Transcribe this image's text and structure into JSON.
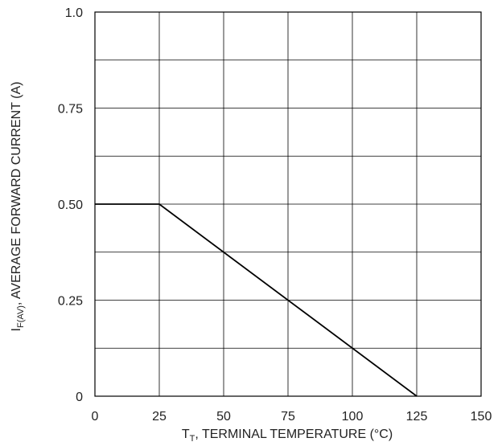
{
  "chart_data": {
    "type": "line",
    "xlabel": {
      "main": "T",
      "sub": "T",
      "rest": ", TERMINAL TEMPERATURE (°C)"
    },
    "ylabel": {
      "main": "I",
      "sub": "F(AV)",
      "rest": ", AVERAGE FORWARD CURRENT (A)"
    },
    "xlim": [
      0,
      150
    ],
    "ylim": [
      0,
      1.0
    ],
    "x_ticks": [
      0,
      25,
      50,
      75,
      100,
      125,
      150
    ],
    "x_tick_labels": [
      "0",
      "25",
      "50",
      "75",
      "100",
      "125",
      "150"
    ],
    "y_ticks": [
      0,
      0.25,
      0.5,
      0.75,
      1.0
    ],
    "y_tick_labels": [
      "0",
      "0.25",
      "0.50",
      "0.75",
      "1.0"
    ],
    "y_gridlines": [
      0.125,
      0.25,
      0.375,
      0.5,
      0.625,
      0.75,
      0.875
    ],
    "x_gridlines": [
      25,
      50,
      75,
      100,
      125
    ],
    "grid": true,
    "series": [
      {
        "x": [
          0,
          25,
          125
        ],
        "y": [
          0.5,
          0.5,
          0
        ]
      }
    ],
    "colors": {
      "line": "#000000",
      "grid": "#000000",
      "text": "#222222"
    }
  }
}
